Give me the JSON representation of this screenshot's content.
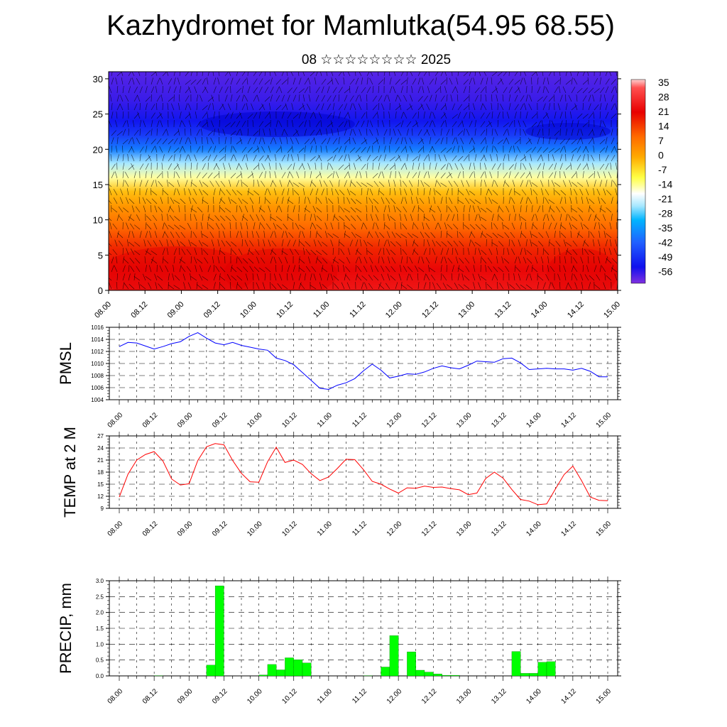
{
  "page": {
    "title": "Kazhydromet for Mamlutka(54.95 68.55)",
    "subtitle": "08 ☆☆☆☆☆☆☆☆ 2025"
  },
  "colors": {
    "pmsl_line": "#0000ff",
    "temp_line": "#ff0000",
    "precip_bar": "#00ff00",
    "precip_bar_outline": "#006600",
    "wind_barb": "#000000"
  },
  "chart_data": [
    {
      "type": "heatmap",
      "title": "",
      "xlabel": "",
      "ylabel": "",
      "x_tick_labels": [
        "08.00",
        "08.12",
        "09.00",
        "09.12",
        "10.00",
        "10.12",
        "11.00",
        "11.12",
        "12.00",
        "12.12",
        "13.00",
        "13.12",
        "14.00",
        "14.12",
        "15.00"
      ],
      "y_ticks": [
        0,
        5,
        10,
        15,
        20,
        25,
        30
      ],
      "ylim": [
        0,
        31
      ],
      "colorbar": {
        "labels": [
          "35",
          "28",
          "21",
          "14",
          "7",
          "0",
          "-7",
          "-14",
          "-21",
          "-28",
          "-35",
          "-42",
          "-49",
          "-56"
        ],
        "range": [
          -63,
          42
        ]
      },
      "temperature_profile": {
        "levels": [
          0,
          3,
          6,
          9,
          12,
          14,
          16,
          18,
          20,
          22,
          24,
          27,
          31
        ],
        "values": [
          25,
          22,
          17,
          10,
          3,
          -2,
          -12,
          -24,
          -38,
          -48,
          -54,
          -58,
          -60
        ]
      },
      "overlay": "wind barbs",
      "grid": false
    },
    {
      "type": "line",
      "ylabel": "PMSL",
      "ylim": [
        1004,
        1016
      ],
      "y_ticks": [
        1004,
        1006,
        1008,
        1010,
        1012,
        1014,
        1016
      ],
      "x_tick_labels": [
        "08.00",
        "08.12",
        "09.00",
        "09.12",
        "10.00",
        "10.12",
        "11.00",
        "11.12",
        "12.00",
        "12.12",
        "13.00",
        "13.12",
        "14.00",
        "14.12",
        "15.00"
      ],
      "x": [
        0,
        3,
        6,
        9,
        12,
        15,
        18,
        21,
        24,
        27,
        30,
        33,
        36,
        39,
        42,
        45,
        48,
        51,
        54,
        57,
        60,
        63,
        66,
        69,
        72,
        75,
        78,
        81,
        84,
        87,
        90,
        93,
        96,
        99,
        102,
        105,
        108,
        111,
        114,
        117,
        120,
        123,
        126,
        129,
        132,
        135,
        138,
        141,
        144,
        147,
        150,
        153,
        156,
        159,
        162,
        165,
        168
      ],
      "series": [
        {
          "name": "",
          "values": [
            1012.8,
            1013.5,
            1013.4,
            1012.9,
            1012.4,
            1012.8,
            1013.3,
            1013.6,
            1014.5,
            1015.1,
            1014.2,
            1013.4,
            1013.1,
            1013.5,
            1013.0,
            1012.7,
            1012.4,
            1012.2,
            1010.9,
            1010.5,
            1009.8,
            1008.5,
            1007.2,
            1005.9,
            1005.7,
            1006.4,
            1006.8,
            1007.5,
            1008.8,
            1009.9,
            1008.9,
            1007.6,
            1007.9,
            1008.3,
            1008.2,
            1008.6,
            1009.2,
            1009.6,
            1009.3,
            1009.1,
            1009.7,
            1010.4,
            1010.3,
            1010.2,
            1010.8,
            1010.9,
            1010.1,
            1009.0,
            1009.1,
            1009.2,
            1009.1,
            1009.1,
            1008.9,
            1009.2,
            1008.7,
            1007.8,
            1007.8
          ]
        }
      ],
      "grid": true
    },
    {
      "type": "line",
      "ylabel": "TEMP at 2 M",
      "ylim": [
        9,
        27
      ],
      "y_ticks": [
        9,
        12,
        15,
        18,
        21,
        24,
        27
      ],
      "x_tick_labels": [
        "08.00",
        "08.12",
        "09.00",
        "09.12",
        "10.00",
        "10.12",
        "11.00",
        "11.12",
        "12.00",
        "12.12",
        "13.00",
        "13.12",
        "14.00",
        "14.12",
        "15.00"
      ],
      "x": [
        0,
        3,
        6,
        9,
        12,
        15,
        18,
        21,
        24,
        27,
        30,
        33,
        36,
        39,
        42,
        45,
        48,
        51,
        54,
        57,
        60,
        63,
        66,
        69,
        72,
        75,
        78,
        81,
        84,
        87,
        90,
        93,
        96,
        99,
        102,
        105,
        108,
        111,
        114,
        117,
        120,
        123,
        126,
        129,
        132,
        135,
        138,
        141,
        144,
        147,
        150,
        153,
        156,
        159,
        162,
        165,
        168
      ],
      "series": [
        {
          "name": "",
          "values": [
            11.8,
            17.5,
            21.0,
            22.4,
            23.1,
            20.8,
            16.3,
            14.8,
            15.1,
            20.9,
            24.3,
            25.1,
            24.8,
            20.9,
            17.7,
            15.6,
            15.5,
            20.6,
            24.2,
            20.4,
            21.0,
            19.9,
            17.6,
            15.9,
            16.8,
            18.9,
            21.2,
            21.1,
            18.6,
            15.7,
            15.0,
            13.8,
            12.8,
            14.1,
            14.0,
            14.5,
            14.2,
            14.3,
            13.9,
            13.6,
            12.4,
            12.8,
            16.4,
            18.0,
            16.5,
            13.7,
            11.2,
            10.8,
            9.9,
            10.1,
            13.8,
            17.4,
            19.5,
            15.9,
            11.8,
            11.0,
            10.9
          ]
        }
      ],
      "grid": true
    },
    {
      "type": "bar",
      "ylabel": "PRECIP, mm",
      "ylim": [
        0,
        3.0
      ],
      "y_ticks": [
        "0.0",
        "0.5",
        "1.0",
        "1.5",
        "2.0",
        "2.5",
        "3.0"
      ],
      "x_tick_labels": [
        "08.00",
        "08.12",
        "09.00",
        "09.12",
        "10.00",
        "10.12",
        "11.00",
        "11.12",
        "12.00",
        "12.12",
        "13.00",
        "13.12",
        "14.00",
        "14.12",
        "15.00"
      ],
      "x": [
        0,
        3,
        6,
        9,
        12,
        15,
        18,
        21,
        24,
        27,
        30,
        33,
        36,
        39,
        42,
        45,
        48,
        51,
        54,
        57,
        60,
        63,
        66,
        69,
        72,
        75,
        78,
        81,
        84,
        87,
        90,
        93,
        96,
        99,
        102,
        105,
        108,
        111,
        114,
        117,
        120,
        123,
        126,
        129,
        132,
        135,
        138,
        141,
        144,
        147,
        150,
        153,
        156,
        159,
        162,
        165
      ],
      "values": [
        0,
        0,
        0,
        0,
        0.01,
        0,
        0,
        0,
        0,
        0,
        0.34,
        2.84,
        0,
        0,
        0,
        0,
        0.03,
        0.36,
        0.19,
        0.57,
        0.51,
        0.41,
        0,
        0,
        0,
        0,
        0,
        0,
        0.01,
        0,
        0.28,
        1.27,
        0,
        0.76,
        0.18,
        0.12,
        0.06,
        0.02,
        0.02,
        0,
        0,
        0,
        0,
        0,
        0,
        0.77,
        0.08,
        0.08,
        0.43,
        0.45,
        0,
        0,
        0,
        0,
        0,
        0
      ],
      "grid": true
    }
  ]
}
